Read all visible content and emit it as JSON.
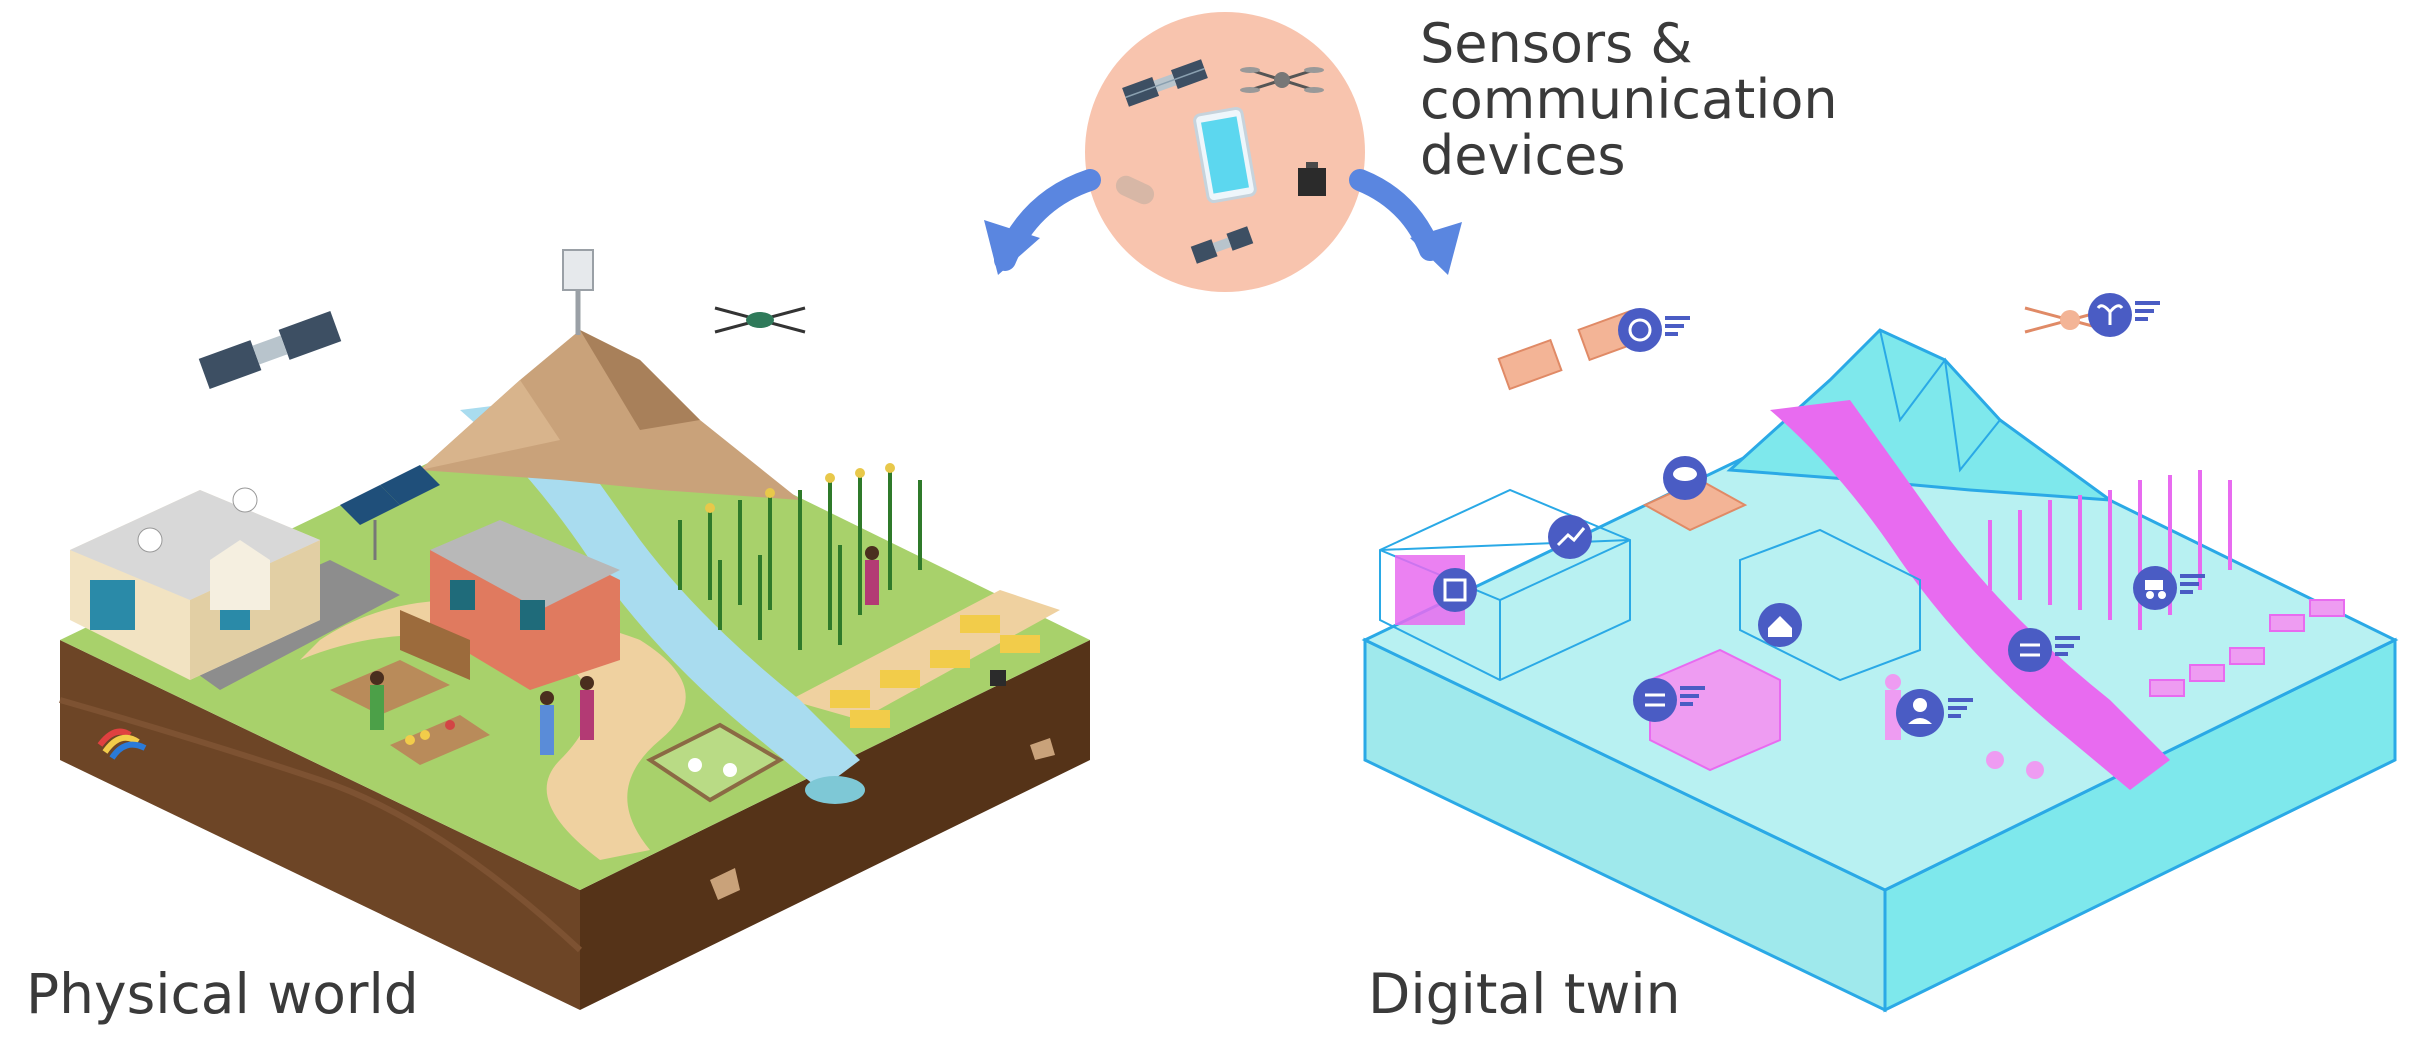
{
  "labels": {
    "physical_world": "Physical world",
    "digital_twin": "Digital twin",
    "sensors_line1": "Sensors &",
    "sensors_line2": "communication",
    "sensors_line3": "devices"
  },
  "colors": {
    "grass": "#a8d16b",
    "soil": "#6d4526",
    "soil_dark": "#553318",
    "path": "#efd1a0",
    "water": "#a9dcef",
    "mountain": "#c9a27a",
    "twin_cyan": "#7ee8ec",
    "twin_edge": "#2aa9e6",
    "twin_magenta": "#e86bf0",
    "twin_orange": "#f3b496",
    "twin_icon": "#4a5cc4",
    "sensor_bubble": "#f8c4ae",
    "arrow_blue": "#5a86e0",
    "text": "#3a3a3a"
  },
  "icons": [
    "satellite-icon",
    "drone-icon",
    "cell-tower-icon",
    "tablet-icon",
    "sensor-box-icon",
    "solar-panel-icon",
    "house-icon",
    "barn-icon",
    "corn-icon",
    "hay-bale-icon",
    "chicken-icon",
    "person-icon",
    "database-icon",
    "trend-chart-icon",
    "weather-icon",
    "home-icon",
    "transfer-icon",
    "user-icon",
    "tractor-icon",
    "plant-icon",
    "globe-icon"
  ]
}
